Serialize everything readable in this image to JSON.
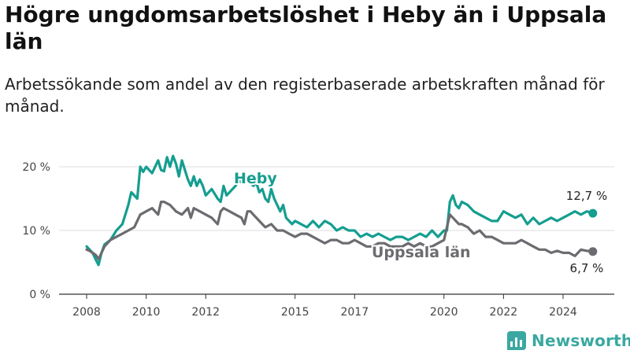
{
  "title": "Högre ungdomsarbetslöshet i Heby än i Uppsala län",
  "subtitle": "Arbetssökande som andel av den registerbaserade arbetskraften månad för månad.",
  "brand": "Newsworthy",
  "colors": {
    "heby": "#159e90",
    "uppsala": "#6c6b70",
    "grid": "#dddddd",
    "axis": "#333333",
    "brand": "#3aa8a0"
  },
  "chart_data": {
    "type": "line",
    "title": "Högre ungdomsarbetslöshet i Heby än i Uppsala län",
    "xlabel": "",
    "ylabel": "",
    "xlim": [
      2007.5,
      2025.3
    ],
    "ylim": [
      0,
      20
    ],
    "yticks": [
      0,
      10,
      20
    ],
    "ytick_labels": [
      "0 %",
      "10 %",
      "20 %"
    ],
    "xticks": [
      2008,
      2010,
      2012,
      2015,
      2017,
      2020,
      2022,
      2024
    ],
    "xtick_labels": [
      "2008",
      "2010",
      "2012",
      "2015",
      "2017",
      "2020",
      "2022",
      "2024"
    ],
    "grid": true,
    "legend": "inline labels",
    "end_labels": [
      "12,7 %",
      "6,7 %"
    ],
    "series": [
      {
        "name": "Heby",
        "x": [
          2008.0,
          2008.1,
          2008.2,
          2008.3,
          2008.4,
          2008.5,
          2008.6,
          2008.8,
          2009.0,
          2009.2,
          2009.4,
          2009.5,
          2009.6,
          2009.7,
          2009.8,
          2009.9,
          2010.0,
          2010.1,
          2010.2,
          2010.3,
          2010.4,
          2010.5,
          2010.6,
          2010.7,
          2010.8,
          2010.9,
          2011.0,
          2011.1,
          2011.2,
          2011.3,
          2011.4,
          2011.5,
          2011.6,
          2011.7,
          2011.8,
          2011.9,
          2012.0,
          2012.2,
          2012.4,
          2012.5,
          2012.6,
          2012.7,
          2012.8,
          2012.9,
          2013.0,
          2013.1,
          2013.2,
          2013.3,
          2013.4,
          2013.5,
          2013.6,
          2013.7,
          2013.8,
          2013.9,
          2014.0,
          2014.1,
          2014.2,
          2014.3,
          2014.4,
          2014.5,
          2014.6,
          2014.7,
          2014.8,
          2014.9,
          2015.0,
          2015.2,
          2015.4,
          2015.6,
          2015.8,
          2016.0,
          2016.2,
          2016.4,
          2016.6,
          2016.8,
          2017.0,
          2017.2,
          2017.4,
          2017.6,
          2017.8,
          2018.0,
          2018.2,
          2018.4,
          2018.6,
          2018.8,
          2019.0,
          2019.2,
          2019.4,
          2019.6,
          2019.8,
          2020.0,
          2020.1,
          2020.2,
          2020.3,
          2020.4,
          2020.5,
          2020.6,
          2020.8,
          2021.0,
          2021.2,
          2021.4,
          2021.6,
          2021.8,
          2022.0,
          2022.2,
          2022.4,
          2022.6,
          2022.8,
          2023.0,
          2023.2,
          2023.4,
          2023.6,
          2023.8,
          2024.0,
          2024.2,
          2024.4,
          2024.6,
          2024.8,
          2025.0
        ],
        "values": [
          7.5,
          7.0,
          6.5,
          5.5,
          4.6,
          6.5,
          7.8,
          8.5,
          10.0,
          11.0,
          14.0,
          16.0,
          15.5,
          15.0,
          20.0,
          19.2,
          20.0,
          19.5,
          19.0,
          20.0,
          21.0,
          19.5,
          19.3,
          21.5,
          20.0,
          21.7,
          20.5,
          18.5,
          21.0,
          19.5,
          18.0,
          17.0,
          18.5,
          17.0,
          18.0,
          17.0,
          15.5,
          16.5,
          15.0,
          14.5,
          17.0,
          15.5,
          16.0,
          16.5,
          17.0,
          18.0,
          17.5,
          19.0,
          18.0,
          17.5,
          17.0,
          17.5,
          16.0,
          16.5,
          15.0,
          14.5,
          16.5,
          15.0,
          14.0,
          13.0,
          14.0,
          12.0,
          11.5,
          11.0,
          11.5,
          11.0,
          10.5,
          11.5,
          10.5,
          11.5,
          11.0,
          10.0,
          10.5,
          10.0,
          10.0,
          9.0,
          9.5,
          9.0,
          9.5,
          9.0,
          8.5,
          9.0,
          9.0,
          8.5,
          9.0,
          9.5,
          9.0,
          10.0,
          9.0,
          10.0,
          10.0,
          14.5,
          15.5,
          14.0,
          13.5,
          14.5,
          14.0,
          13.0,
          12.5,
          12.0,
          11.5,
          11.5,
          13.0,
          12.5,
          12.0,
          12.5,
          11.0,
          12.0,
          11.0,
          11.5,
          12.0,
          11.5,
          12.0,
          12.5,
          13.0,
          12.5,
          13.0,
          12.7
        ]
      },
      {
        "name": "Uppsala län",
        "x": [
          2008.0,
          2008.1,
          2008.2,
          2008.3,
          2008.4,
          2008.5,
          2008.6,
          2008.8,
          2009.0,
          2009.2,
          2009.4,
          2009.6,
          2009.8,
          2010.0,
          2010.2,
          2010.4,
          2010.5,
          2010.6,
          2010.8,
          2010.9,
          2011.0,
          2011.2,
          2011.4,
          2011.5,
          2011.6,
          2011.8,
          2012.0,
          2012.2,
          2012.4,
          2012.5,
          2012.6,
          2012.8,
          2013.0,
          2013.2,
          2013.3,
          2013.4,
          2013.5,
          2013.6,
          2013.8,
          2014.0,
          2014.2,
          2014.4,
          2014.6,
          2014.8,
          2015.0,
          2015.2,
          2015.4,
          2015.6,
          2015.8,
          2016.0,
          2016.2,
          2016.4,
          2016.6,
          2016.8,
          2017.0,
          2017.2,
          2017.4,
          2017.6,
          2017.8,
          2018.0,
          2018.2,
          2018.4,
          2018.6,
          2018.8,
          2019.0,
          2019.2,
          2019.4,
          2019.6,
          2019.8,
          2020.0,
          2020.1,
          2020.2,
          2020.3,
          2020.4,
          2020.5,
          2020.6,
          2020.8,
          2021.0,
          2021.2,
          2021.4,
          2021.6,
          2021.8,
          2022.0,
          2022.2,
          2022.4,
          2022.6,
          2022.8,
          2023.0,
          2023.2,
          2023.4,
          2023.6,
          2023.8,
          2024.0,
          2024.2,
          2024.4,
          2024.6,
          2024.8,
          2025.0
        ],
        "values": [
          7.0,
          6.8,
          6.5,
          6.2,
          5.5,
          6.5,
          7.5,
          8.5,
          9.0,
          9.5,
          10.0,
          10.5,
          12.5,
          13.0,
          13.5,
          12.5,
          14.5,
          14.5,
          14.0,
          13.5,
          13.0,
          12.5,
          13.5,
          12.0,
          13.5,
          13.0,
          12.5,
          12.0,
          11.0,
          13.0,
          13.5,
          13.0,
          12.5,
          12.0,
          11.0,
          13.0,
          13.0,
          12.5,
          11.5,
          10.5,
          11.0,
          10.0,
          10.0,
          9.5,
          9.0,
          9.5,
          9.5,
          9.0,
          8.5,
          8.0,
          8.5,
          8.5,
          8.0,
          8.0,
          8.5,
          8.0,
          7.5,
          7.5,
          8.0,
          8.0,
          7.5,
          7.5,
          7.5,
          8.0,
          7.5,
          8.0,
          7.5,
          7.5,
          8.0,
          8.5,
          10.5,
          12.5,
          12.0,
          11.5,
          11.0,
          11.0,
          10.5,
          9.5,
          10.0,
          9.0,
          9.0,
          8.5,
          8.0,
          8.0,
          8.0,
          8.5,
          8.0,
          7.5,
          7.0,
          7.0,
          6.5,
          6.8,
          6.5,
          6.5,
          6.0,
          7.0,
          6.8,
          6.7
        ]
      }
    ]
  }
}
